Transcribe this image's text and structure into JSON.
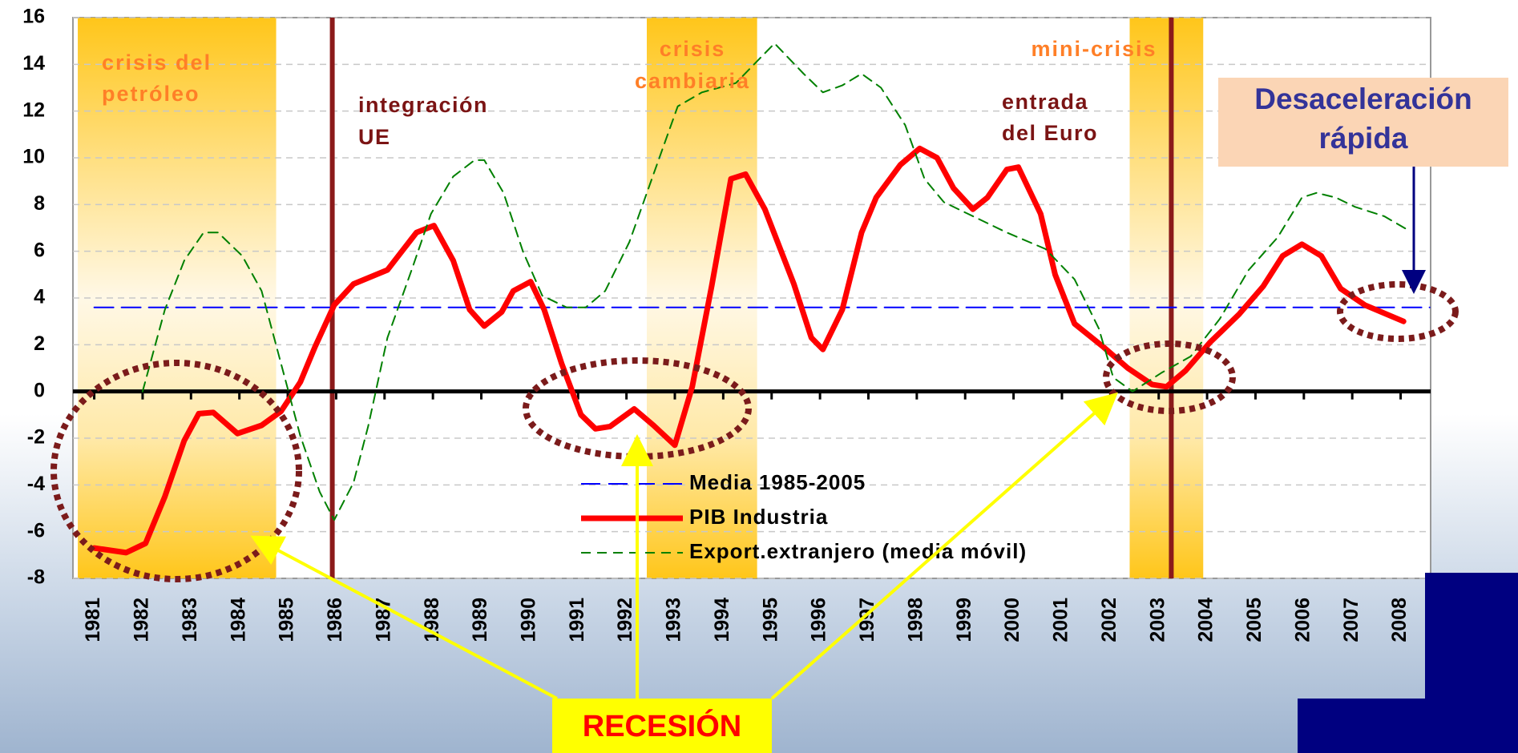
{
  "chart_data": {
    "type": "line",
    "xlim": [
      1980.56,
      2008.62
    ],
    "xticks": [
      1981,
      1982,
      1983,
      1984,
      1985,
      1986,
      1987,
      1988,
      1989,
      1990,
      1991,
      1992,
      1993,
      1994,
      1995,
      1996,
      1997,
      1998,
      1999,
      2000,
      2001,
      2002,
      2003,
      2004,
      2005,
      2006,
      2007,
      2008
    ],
    "ylim": [
      -8,
      16
    ],
    "yticks": [
      -8,
      -6,
      -4,
      -2,
      0,
      2,
      4,
      6,
      8,
      10,
      12,
      14,
      16
    ],
    "grid": true,
    "series": [
      {
        "name": "Media 1985-2005",
        "color": "#0000ff",
        "line_style": "dashed",
        "x": [
          1981,
          2008.6
        ],
        "values": [
          3.6,
          3.6
        ]
      },
      {
        "name": "PIB Industria",
        "color": "#ff0000",
        "line_style": "solid",
        "x": [
          1981,
          1981.66,
          1982.06,
          1982.46,
          1982.86,
          1983.16,
          1983.46,
          1983.96,
          1984.46,
          1984.86,
          1985.26,
          1985.56,
          1985.96,
          1986.36,
          1987.06,
          1987.66,
          1988.02,
          1988.42,
          1988.76,
          1989.06,
          1989.42,
          1989.66,
          1990.02,
          1990.3,
          1990.66,
          1991.06,
          1991.36,
          1991.66,
          1992.16,
          1992.56,
          1993.0,
          1993.36,
          1993.76,
          1994.16,
          1994.46,
          1994.86,
          1995.46,
          1995.82,
          1996.06,
          1996.46,
          1996.86,
          1997.16,
          1997.66,
          1998.06,
          1998.42,
          1998.76,
          1999.16,
          1999.46,
          1999.86,
          2000.1,
          2000.56,
          2000.86,
          2001.26,
          2001.86,
          2002.36,
          2002.86,
          2003.16,
          2003.56,
          2004.06,
          2004.66,
          2005.16,
          2005.56,
          2005.96,
          2006.36,
          2006.76,
          2007.26,
          2008.06
        ],
        "values": [
          -6.7,
          -6.9,
          -6.5,
          -4.5,
          -2.1,
          -0.95,
          -0.9,
          -1.8,
          -1.45,
          -0.85,
          0.4,
          1.9,
          3.7,
          4.6,
          5.2,
          6.8,
          7.1,
          5.6,
          3.5,
          2.8,
          3.4,
          4.3,
          4.7,
          3.5,
          1.2,
          -1.0,
          -1.6,
          -1.5,
          -0.75,
          -1.45,
          -2.3,
          0.2,
          4.5,
          9.1,
          9.3,
          7.8,
          4.6,
          2.3,
          1.8,
          3.5,
          6.8,
          8.3,
          9.7,
          10.4,
          10.0,
          8.7,
          7.8,
          8.3,
          9.5,
          9.6,
          7.6,
          5.0,
          2.9,
          1.9,
          1.0,
          0.3,
          0.2,
          0.9,
          2.1,
          3.3,
          4.5,
          5.8,
          6.3,
          5.8,
          4.4,
          3.7,
          3.0
        ]
      },
      {
        "name": "Export.extranjero (media móvil)",
        "color": "#008000",
        "line_style": "dashed",
        "x": [
          1982,
          1982.46,
          1982.86,
          1983.26,
          1983.56,
          1984.06,
          1984.46,
          1984.86,
          1985.26,
          1985.66,
          1985.96,
          1986.36,
          1986.66,
          1987.06,
          1987.56,
          1987.96,
          1988.42,
          1988.86,
          1989.06,
          1989.46,
          1989.86,
          1990.26,
          1990.76,
          1991.16,
          1991.56,
          1992.06,
          1992.56,
          1993.06,
          1993.56,
          1994.26,
          1995.06,
          1995.66,
          1996.06,
          1996.46,
          1996.86,
          1997.26,
          1997.76,
          1998.16,
          1998.56,
          1999.06,
          1999.86,
          2000.66,
          2001.26,
          2001.76,
          2002.06,
          2002.46,
          2003.06,
          2003.66,
          2004.26,
          2004.86,
          2005.46,
          2005.96,
          2006.26,
          2006.66,
          2007.06,
          2007.66,
          2008.16
        ],
        "values": [
          0,
          3.5,
          5.6,
          6.8,
          6.8,
          5.8,
          4.3,
          1.2,
          -1.9,
          -4.3,
          -5.5,
          -3.9,
          -1.5,
          2.3,
          5.2,
          7.6,
          9.2,
          9.9,
          9.9,
          8.5,
          6.0,
          4.1,
          3.6,
          3.6,
          4.3,
          6.4,
          9.3,
          12.2,
          12.8,
          13.2,
          14.9,
          13.6,
          12.8,
          13.1,
          13.6,
          13.0,
          11.4,
          9.1,
          8.1,
          7.6,
          6.8,
          6.1,
          4.8,
          2.7,
          0.6,
          0,
          0.8,
          1.5,
          3.1,
          5.2,
          6.6,
          8.3,
          8.5,
          8.3,
          7.9,
          7.5,
          6.9
        ]
      }
    ],
    "bands": [
      {
        "x0": 1980.66,
        "x1": 1984.76,
        "label": [
          "crisis del",
          "petróleo"
        ]
      },
      {
        "x0": 1992.42,
        "x1": 1994.7,
        "label": [
          "crisis",
          "cambiaria"
        ]
      },
      {
        "x0": 2002.4,
        "x1": 2003.92,
        "label": [
          "mini-crisis"
        ]
      }
    ],
    "vlines": [
      {
        "x": 1985.92,
        "label": [
          "integración",
          "UE"
        ]
      },
      {
        "x": 2003.26,
        "label": [
          "entrada",
          "del Euro"
        ]
      }
    ],
    "callout": [
      "Desaceleración",
      "rápida"
    ],
    "recession_label": "RECESIÓN"
  }
}
